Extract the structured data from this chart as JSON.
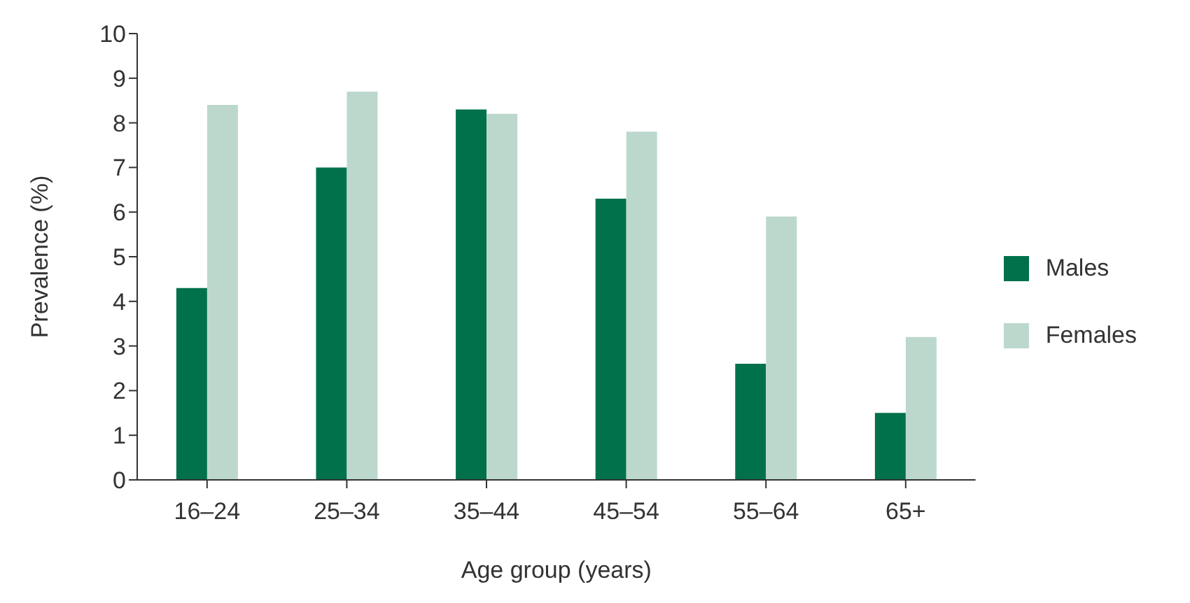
{
  "chart_data": {
    "type": "bar",
    "xlabel": "Age group (years)",
    "ylabel": "Prevalence (%)",
    "categories": [
      "16–24",
      "25–34",
      "35–44",
      "45–54",
      "55–64",
      "65+"
    ],
    "series": [
      {
        "name": "Males",
        "color": "#00714a",
        "values": [
          4.3,
          7.0,
          8.3,
          6.3,
          2.6,
          1.5
        ]
      },
      {
        "name": "Females",
        "color": "#bcd8cd",
        "values": [
          8.4,
          8.7,
          8.2,
          7.8,
          5.9,
          3.2
        ]
      }
    ],
    "ylim": [
      0,
      10
    ],
    "yticks": [
      0,
      1,
      2,
      3,
      4,
      5,
      6,
      7,
      8,
      9,
      10
    ],
    "grid": false,
    "legend": "right"
  }
}
